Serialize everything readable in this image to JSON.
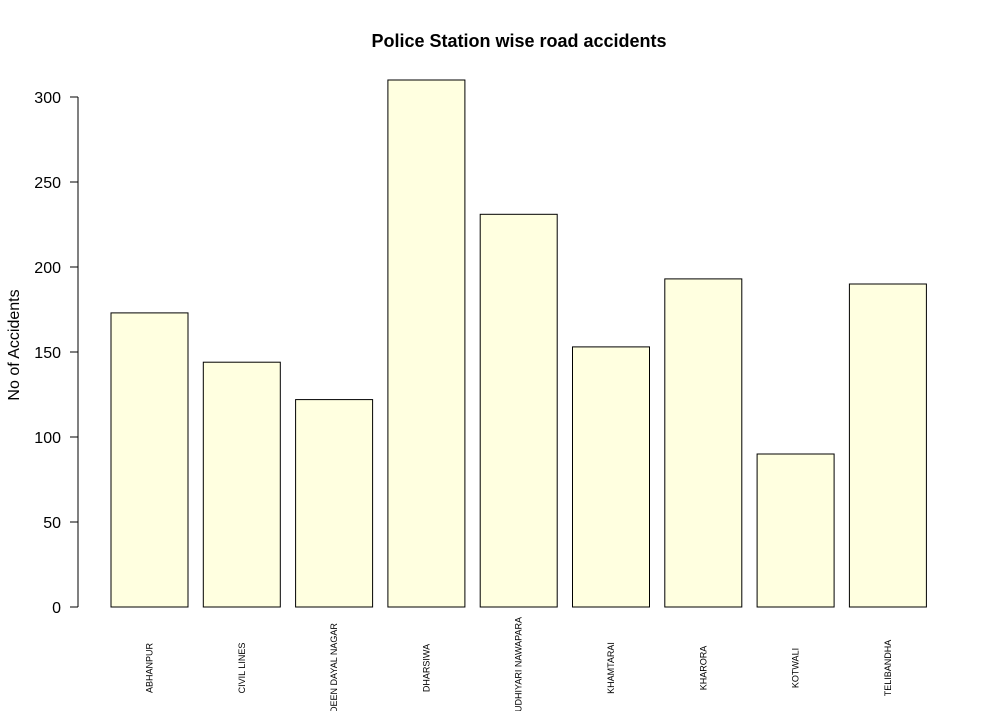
{
  "chart_data": {
    "type": "bar",
    "title": "Police Station wise road accidents",
    "xlabel": "",
    "ylabel": "No of Accidents",
    "categories": [
      "ABHANPUR",
      "CIVIL LINES",
      "DEEN DAYAL NAGAR",
      "DHARSIWA",
      "GUDHIYARI NAWAPARA",
      "KHAMTARAI",
      "KHARORA",
      "KOTWALI",
      "TELIBANDHA"
    ],
    "values": [
      173,
      144,
      122,
      310,
      231,
      153,
      193,
      90,
      190
    ],
    "yticks": [
      0,
      50,
      100,
      150,
      200,
      250,
      300
    ],
    "ylim": [
      0,
      310
    ],
    "bar_fill": "#ffffe0",
    "bar_stroke": "#000000",
    "grid": false,
    "legend": "none"
  }
}
